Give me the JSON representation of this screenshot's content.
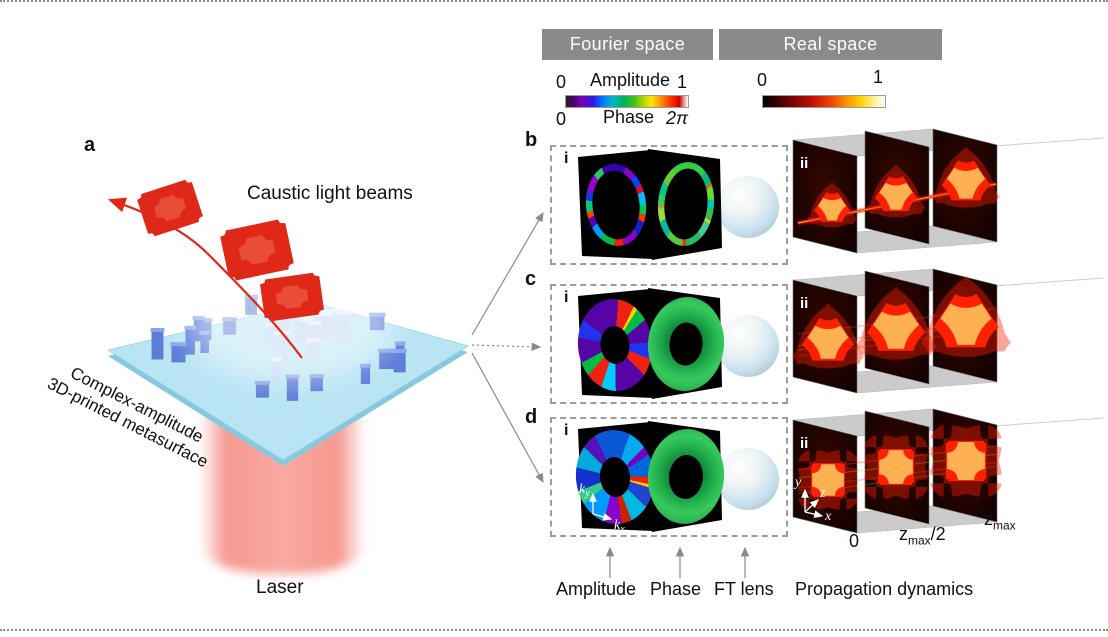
{
  "panel_a": {
    "label": "a",
    "caustic_beams_label": "Caustic light beams",
    "metasurface_label_line1": "Complex-amplitude",
    "metasurface_label_line2": "3D-printed metasurface",
    "laser_label": "Laser"
  },
  "headers": {
    "fourier": "Fourier space",
    "real": "Real space"
  },
  "fourier_colorbar": {
    "amplitude_min": "0",
    "amplitude_label": "Amplitude",
    "amplitude_max": "1",
    "phase_min": "0",
    "phase_label": "Phase",
    "phase_max": "2π"
  },
  "real_colorbar": {
    "min": "0",
    "max": "1"
  },
  "rows": [
    {
      "label": "b",
      "i": "i",
      "ii": "ii"
    },
    {
      "label": "c",
      "i": "i",
      "ii": "ii"
    },
    {
      "label": "d",
      "i": "i",
      "ii": "ii"
    }
  ],
  "fourier_axes": {
    "ky_base": "k",
    "ky_sub": "y",
    "kx_base": "k",
    "kx_sub": "x"
  },
  "real_axes": {
    "y": "y",
    "z": "z",
    "x": "x"
  },
  "z_ticks": {
    "zero": "0",
    "half_base": "z",
    "half_sub": "max",
    "half_suffix": "/2",
    "max_base": "z",
    "max_sub": "max"
  },
  "bottom_labels": {
    "amplitude": "Amplitude",
    "phase": "Phase",
    "ft_lens": "FT lens",
    "propagation": "Propagation dynamics"
  },
  "colors": {
    "header_bar": "#8a8a8a",
    "laser_beam": "#f2837b",
    "platform": "#b9e4f4",
    "pillar": "#5b7cd8",
    "caustic_red": "#e02818",
    "panel_black": "#000000",
    "box_face_gray": "#cbcbcb",
    "arrow_gray": "#8a8a8a"
  }
}
